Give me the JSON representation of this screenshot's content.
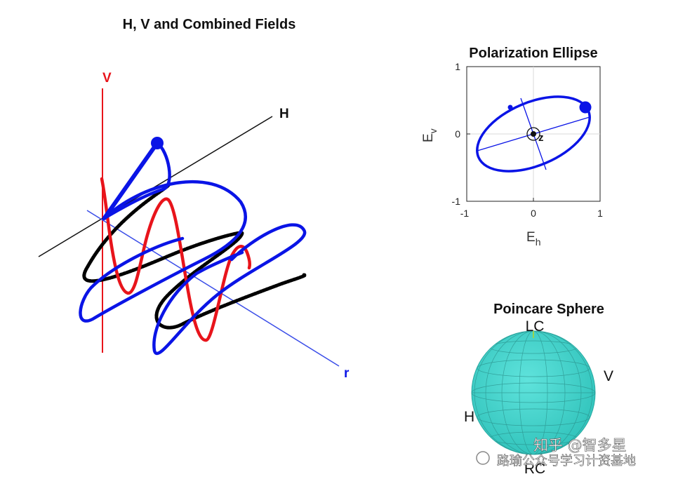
{
  "left_panel": {
    "title": "H, V and Combined Fields",
    "axis_v_label": "V",
    "axis_h_label": "H",
    "axis_r_label": "r",
    "colors": {
      "v_field": "#e8141b",
      "h_field": "#000000",
      "combined": "#0a14e6",
      "r_axis": "#3a4de8"
    }
  },
  "ellipse_panel": {
    "title": "Polarization Ellipse",
    "xlabel_main": "E",
    "xlabel_sub": "h",
    "ylabel_main": "E",
    "ylabel_sub": "v",
    "xticks": [
      "-1",
      "0",
      "1"
    ],
    "yticks": [
      "1",
      "0",
      "-1"
    ],
    "center_label": "z"
  },
  "sphere_panel": {
    "title": "Poincare Sphere",
    "labels": {
      "top": "LC",
      "right": "V",
      "left": "H",
      "bottom": "RC"
    },
    "color": "#44d4cc"
  },
  "watermark": {
    "line1": "知乎 @智多星",
    "line2": "路瑜公众号学习计资基地"
  }
}
